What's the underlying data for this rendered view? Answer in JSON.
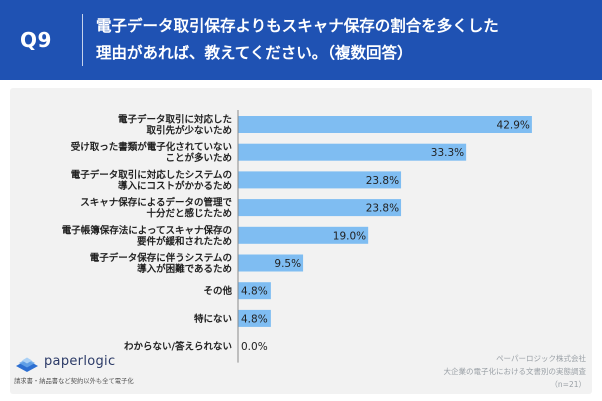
{
  "header": {
    "qnum": "Q9",
    "question_line1": "電子データ取引保存よりもスキャナ保存の割合を多くした",
    "question_line2": "理由があれば、教えてください。（複数回答）"
  },
  "colors": {
    "header_bg": "#1f52b3",
    "bar": "#7fbdf2",
    "panel_bg": "#f2f2f2"
  },
  "chart_data": {
    "type": "bar",
    "orientation": "horizontal",
    "categories": [
      [
        "電子データ取引に対応した",
        "取引先が少ないため"
      ],
      [
        "受け取った書類が電子化されていない",
        "ことが多いため"
      ],
      [
        "電子データ取引に対応したシステムの",
        "導入にコストがかかるため"
      ],
      [
        "スキャナ保存によるデータの管理で",
        "十分だと感じたため"
      ],
      [
        "電子帳簿保存法によってスキャナ保存の",
        "要件が緩和されたため"
      ],
      [
        "電子データ保存に伴うシステムの",
        "導入が困難であるため"
      ],
      [
        "その他"
      ],
      [
        "特にない"
      ],
      [
        "わからない/答えられない"
      ]
    ],
    "values": [
      42.9,
      33.3,
      23.8,
      23.8,
      19.0,
      9.5,
      4.8,
      4.8,
      0.0
    ],
    "value_labels": [
      "42.9%",
      "33.3%",
      "23.8%",
      "23.8%",
      "19.0%",
      "9.5%",
      "4.8%",
      "4.8%",
      "0.0%"
    ],
    "xlim": [
      0,
      47
    ],
    "grid": false,
    "legend": "none"
  },
  "footer": {
    "logo_name": "paperlogic",
    "logo_tagline": "請求書・納品書など契約以外も全て電子化",
    "source_line1": "ペーパーロジック株式会社",
    "source_line2": "大企業の電子化における文書別の実態調査",
    "source_line3": "（n=21）"
  }
}
